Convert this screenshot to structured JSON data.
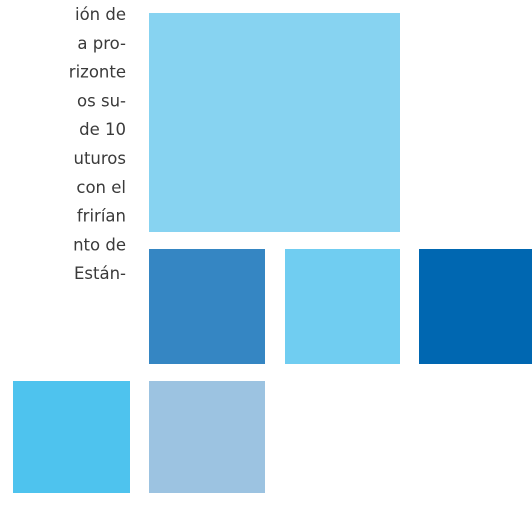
{
  "text_lines": [
    "ión de",
    "a pro-",
    "rizonte",
    "os su-",
    "de 10",
    "uturos",
    "con el",
    "frirían",
    "nto de",
    "Están-"
  ]
}
